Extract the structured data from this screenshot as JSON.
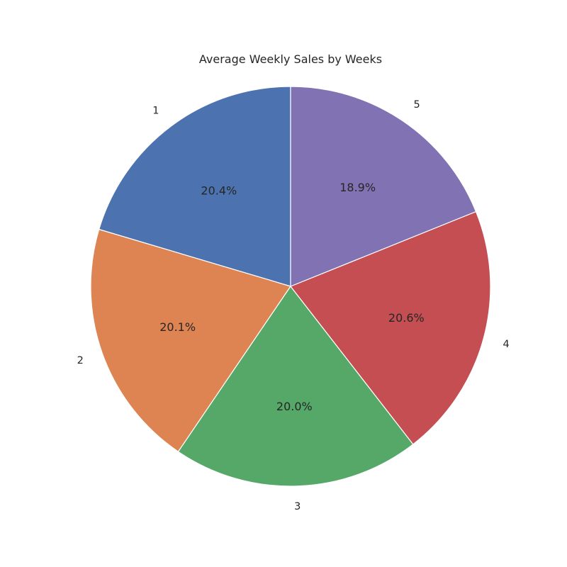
{
  "chart_data": {
    "type": "pie",
    "title": "Average Weekly Sales by Weeks",
    "categories": [
      "1",
      "2",
      "3",
      "4",
      "5"
    ],
    "values": [
      20.4,
      20.1,
      20.0,
      20.6,
      18.9
    ],
    "value_labels": [
      "20.4%",
      "20.1%",
      "20.0%",
      "20.6%",
      "18.9%"
    ],
    "colors": [
      "#4c72b0",
      "#dd8452",
      "#55a868",
      "#c44e52",
      "#8172b3"
    ],
    "start_angle_deg": 90,
    "direction": "counterclockwise",
    "legend": "none"
  }
}
